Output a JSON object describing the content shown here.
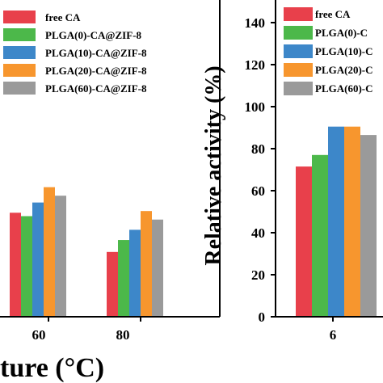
{
  "colors": {
    "free_ca": "#e8404b",
    "plga0": "#4cb84a",
    "plga10": "#3d87c9",
    "plga20": "#f7962e",
    "plga60": "#9a9a9a"
  },
  "chart_data": [
    {
      "type": "bar",
      "panel": "left",
      "categories": [
        "60",
        "80"
      ],
      "series": [
        {
          "name": "free CA",
          "values": [
            61,
            38
          ]
        },
        {
          "name": "PLGA(0)-CA@ZIF-8",
          "values": [
            59,
            45
          ]
        },
        {
          "name": "PLGA(10)-CA@ZIF-8",
          "values": [
            67,
            51
          ]
        },
        {
          "name": "PLGA(20)-CA@ZIF-8",
          "values": [
            76,
            62
          ]
        },
        {
          "name": "PLGA(60)-CA@ZIF-8",
          "values": [
            71,
            57
          ]
        }
      ],
      "xlabel": "ture (°C)",
      "ylabel": "",
      "ylim": [
        -5,
        150
      ],
      "legend": "top-left"
    },
    {
      "type": "bar",
      "panel": "right",
      "categories": [
        "6"
      ],
      "series": [
        {
          "name": "free CA",
          "values": [
            71.5
          ]
        },
        {
          "name": "PLGA(0)-C",
          "values": [
            77
          ]
        },
        {
          "name": "PLGA(10)-C",
          "values": [
            90.5
          ]
        },
        {
          "name": "PLGA(20)-C",
          "values": [
            90.5
          ]
        },
        {
          "name": "PLGA(60)-C",
          "values": [
            86.5
          ]
        }
      ],
      "xlabel": "",
      "ylabel": "Relative activity (%)",
      "yticks": [
        "0",
        "20",
        "40",
        "60",
        "80",
        "100",
        "120",
        "140"
      ],
      "ylim": [
        0,
        150
      ],
      "legend": "top"
    }
  ]
}
